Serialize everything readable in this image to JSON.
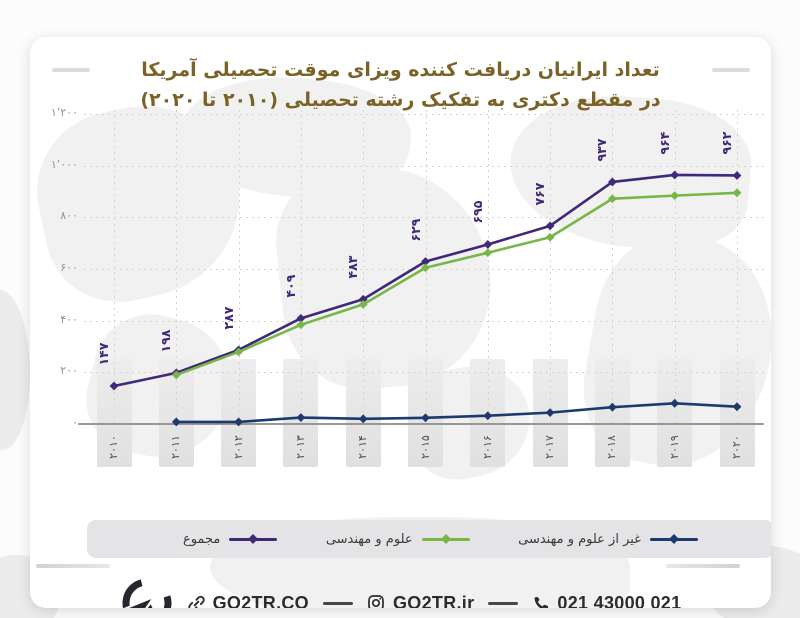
{
  "title": {
    "line1": "تعداد ایرانیان دریافت کننده ویزای موقت تحصیلی آمریکا",
    "line2": "در مقطع دکتری به تفکیک رشته تحصیلی (۲۰۱۰ تا ۲۰۲۰)",
    "color": "#7b6328"
  },
  "chart_data": {
    "type": "line",
    "title": "تعداد ایرانیان دریافت کننده ویزای موقت تحصیلی آمریکا در مقطع دکتری به تفکیک رشته تحصیلی (۲۰۱۰ تا ۲۰۲۰)",
    "x": [
      2010,
      2011,
      2012,
      2013,
      2014,
      2015,
      2016,
      2017,
      2018,
      2019,
      2020
    ],
    "x_labels_fa": [
      "۲۰۱۰",
      "۲۰۱۱",
      "۲۰۱۲",
      "۲۰۱۳",
      "۲۰۱۴",
      "۲۰۱۵",
      "۲۰۱۶",
      "۲۰۱۷",
      "۲۰۱۸",
      "۲۰۱۹",
      "۲۰۲۰"
    ],
    "ylim": [
      0,
      1200
    ],
    "y_ticks": [
      0,
      200,
      400,
      600,
      800,
      1000,
      1200
    ],
    "y_tick_labels_fa": [
      "۰",
      "۲۰۰",
      "۴۰۰",
      "۶۰۰",
      "۸۰۰",
      "۱٬۰۰۰",
      "۱٬۲۰۰"
    ],
    "grid": "dotted",
    "legend_position": "bottom",
    "series": [
      {
        "name": "مجموع",
        "color": "#40287a",
        "values": [
          147,
          198,
          287,
          409,
          483,
          629,
          695,
          767,
          937,
          964,
          962
        ],
        "point_labels_fa": [
          "۱۴۷",
          "۱۹۸",
          "۲۸۷",
          "۴۰۹",
          "۴۸۳",
          "۶۲۹",
          "۶۹۵",
          "۷۶۷",
          "۹۳۷",
          "۹۶۴",
          "۹۶۲"
        ]
      },
      {
        "name": "علوم و مهندسی",
        "color": "#78b648",
        "values": [
          null,
          190,
          279,
          384,
          463,
          605,
          663,
          723,
          872,
          884,
          895
        ],
        "point_labels_fa": []
      },
      {
        "name": "غیر از علوم و مهندسی",
        "color": "#1d3a70",
        "values": [
          null,
          8,
          8,
          25,
          20,
          24,
          32,
          44,
          65,
          80,
          67
        ],
        "point_labels_fa": []
      }
    ]
  },
  "legend": {
    "items": [
      {
        "label": "مجموع",
        "color": "#40287a"
      },
      {
        "label": "علوم و مهندسی",
        "color": "#78b648"
      },
      {
        "label": "غیر از علوم و مهندسی",
        "color": "#1d3a70"
      }
    ]
  },
  "footer": {
    "website": "GO2TR.CO",
    "instagram": "GO2TR.ir",
    "phone": "021 43000 021",
    "logo": "go2tr-airplane-logo"
  }
}
